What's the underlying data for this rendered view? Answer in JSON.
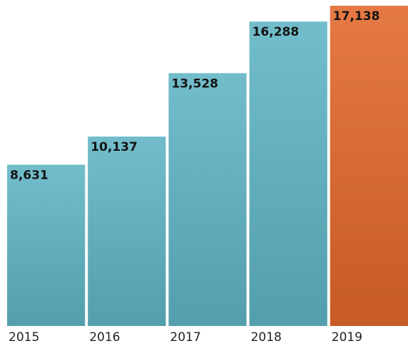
{
  "chart_data": {
    "type": "bar",
    "categories": [
      "2015",
      "2016",
      "2017",
      "2018",
      "2019"
    ],
    "values": [
      8631,
      10137,
      13528,
      16288,
      17138
    ],
    "value_labels": [
      "8,631",
      "10,137",
      "13,528",
      "16,288",
      "17,138"
    ],
    "colors": [
      "#5fb4c4",
      "#5fb4c4",
      "#5fb4c4",
      "#5fb4c4",
      "#e2672a"
    ]
  }
}
